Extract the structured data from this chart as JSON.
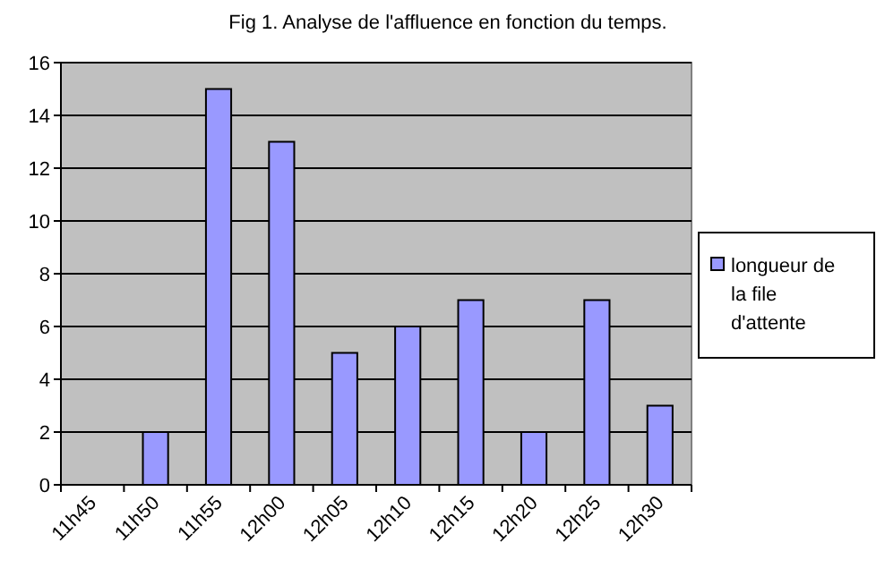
{
  "chart_data": {
    "type": "bar",
    "title": "Fig 1. Analyse de l'affluence en fonction du temps.",
    "categories": [
      "11h45",
      "11h50",
      "11h55",
      "12h00",
      "12h05",
      "12h10",
      "12h15",
      "12h20",
      "12h25",
      "12h30"
    ],
    "series": [
      {
        "name": "longueur de la file d'attente",
        "color": "#9999ff",
        "values": [
          null,
          2,
          15,
          13,
          5,
          6,
          7,
          2,
          7,
          3
        ]
      }
    ],
    "ylim": [
      0,
      16
    ],
    "yticks": [
      0,
      2,
      4,
      6,
      8,
      10,
      12,
      14,
      16
    ],
    "grid": "y",
    "legend": "right"
  }
}
